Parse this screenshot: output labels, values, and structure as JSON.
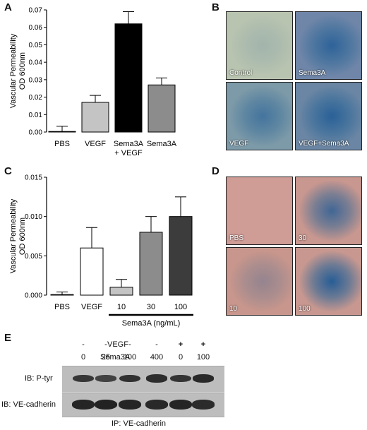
{
  "panels": {
    "A": "A",
    "B": "B",
    "C": "C",
    "D": "D",
    "E": "E"
  },
  "chart_data": [
    {
      "type": "bar",
      "panel": "A",
      "categories": [
        "PBS",
        "VEGF",
        "Sema3A",
        "Sema3A"
      ],
      "category_sublabels": [
        "",
        "",
        "+ VEGF",
        ""
      ],
      "values": [
        0.0003,
        0.017,
        0.062,
        0.027
      ],
      "errors": [
        0.003,
        0.004,
        0.007,
        0.004
      ],
      "bar_colors": [
        "#ffffff",
        "#c4c4c4",
        "#000000",
        "#8c8c8c"
      ],
      "ylabel_line1": "Vascular Permeability",
      "ylabel_line2": "OD 600nm",
      "ylim": [
        0,
        0.07
      ],
      "yticks": [
        "0.00",
        "0.01",
        "0.02",
        "0.03",
        "0.04",
        "0.05",
        "0.06",
        "0.07"
      ],
      "ytick_values": [
        0,
        0.01,
        0.02,
        0.03,
        0.04,
        0.05,
        0.06,
        0.07
      ]
    },
    {
      "type": "bar",
      "panel": "C",
      "categories": [
        "PBS",
        "VEGF",
        "10",
        "30",
        "100"
      ],
      "values": [
        0.0,
        0.006,
        0.001,
        0.008,
        0.01
      ],
      "errors": [
        0.0004,
        0.0026,
        0.001,
        0.002,
        0.0025
      ],
      "bar_colors": [
        "#ffffff",
        "#ffffff",
        "#c4c4c4",
        "#8c8c8c",
        "#3c3c3c"
      ],
      "ylabel_line1": "Vascular Permeability",
      "ylabel_line2": "OD 600nm",
      "ylim": [
        0,
        0.015
      ],
      "yticks": [
        "0.000",
        "0.005",
        "0.010",
        "0.015"
      ],
      "ytick_values": [
        0,
        0.005,
        0.01,
        0.015
      ],
      "group_label": "Sema3A (ng/mL)"
    }
  ],
  "photos_B": [
    {
      "label": "Control",
      "bg": "#b9c4b0",
      "blue": 0.15
    },
    {
      "label": "Sema3A",
      "bg": "#6f86a8",
      "blue": 0.8
    },
    {
      "label": "VEGF",
      "bg": "#7d9aa8",
      "blue": 0.6
    },
    {
      "label": "VEGF+Sema3A",
      "bg": "#6b86a4",
      "blue": 0.85
    }
  ],
  "photos_D": [
    {
      "label": "PBS",
      "bg": "#cf9c96",
      "blue": 0.0
    },
    {
      "label": "30",
      "bg": "#c8978f",
      "blue": 0.8
    },
    {
      "label": "10",
      "bg": "#c8968c",
      "blue": 0.3
    },
    {
      "label": "100",
      "bg": "#c89890",
      "blue": 0.95
    }
  ],
  "blot": {
    "vegf_label": "VEGF",
    "sema3a_label": "Sema3A",
    "vegf_row": [
      "-",
      "-",
      "-",
      "-",
      "+",
      "+"
    ],
    "sema3a_row": [
      "0",
      "25",
      "100",
      "400",
      "0",
      "100"
    ],
    "row1_label": "IB: P-tyr",
    "row2_label": "IB: VE-cadherin",
    "ip_label": "IP: VE-cadherin",
    "row1_intensity": [
      0.7,
      0.55,
      0.8,
      0.85,
      0.75,
      0.9
    ],
    "row2_intensity": [
      0.95,
      1.0,
      0.95,
      0.9,
      0.95,
      0.85
    ]
  }
}
